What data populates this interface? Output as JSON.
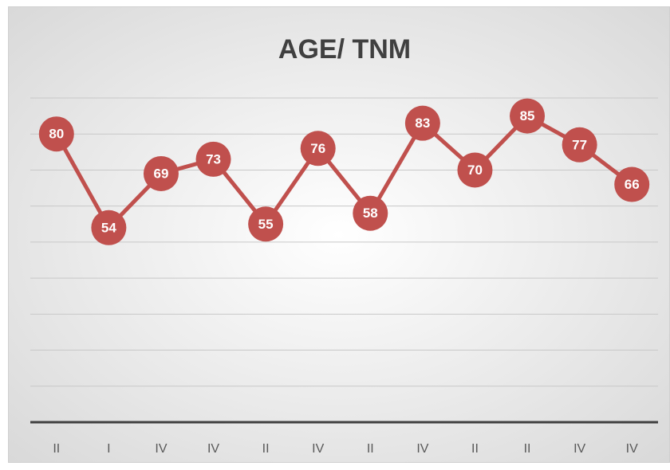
{
  "chart_data": {
    "type": "line",
    "title": "AGE/ TNM",
    "categories": [
      "II",
      "I",
      "IV",
      "IV",
      "II",
      "IV",
      "II",
      "IV",
      "II",
      "II",
      "IV",
      "IV"
    ],
    "values": [
      80,
      54,
      69,
      73,
      55,
      76,
      58,
      83,
      70,
      85,
      77,
      66
    ],
    "color": "#c0504d",
    "ylim": [
      0,
      90
    ],
    "yticks": [
      0,
      10,
      20,
      30,
      40,
      50,
      60,
      70,
      80,
      90
    ],
    "grid": true
  }
}
